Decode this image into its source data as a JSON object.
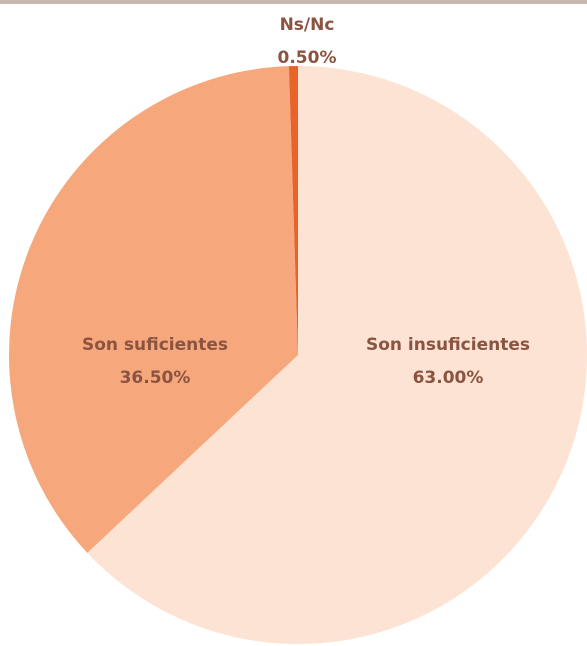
{
  "chart_data": {
    "type": "pie",
    "categories": [
      "Son insuficientes",
      "Son suficientes",
      "Ns/Nc"
    ],
    "values": [
      63.0,
      36.5,
      0.5
    ],
    "value_labels": [
      "63.00%",
      "36.50%",
      "0.50%"
    ],
    "colors": [
      "#fde3d3",
      "#f6a77c",
      "#e8622a"
    ]
  }
}
